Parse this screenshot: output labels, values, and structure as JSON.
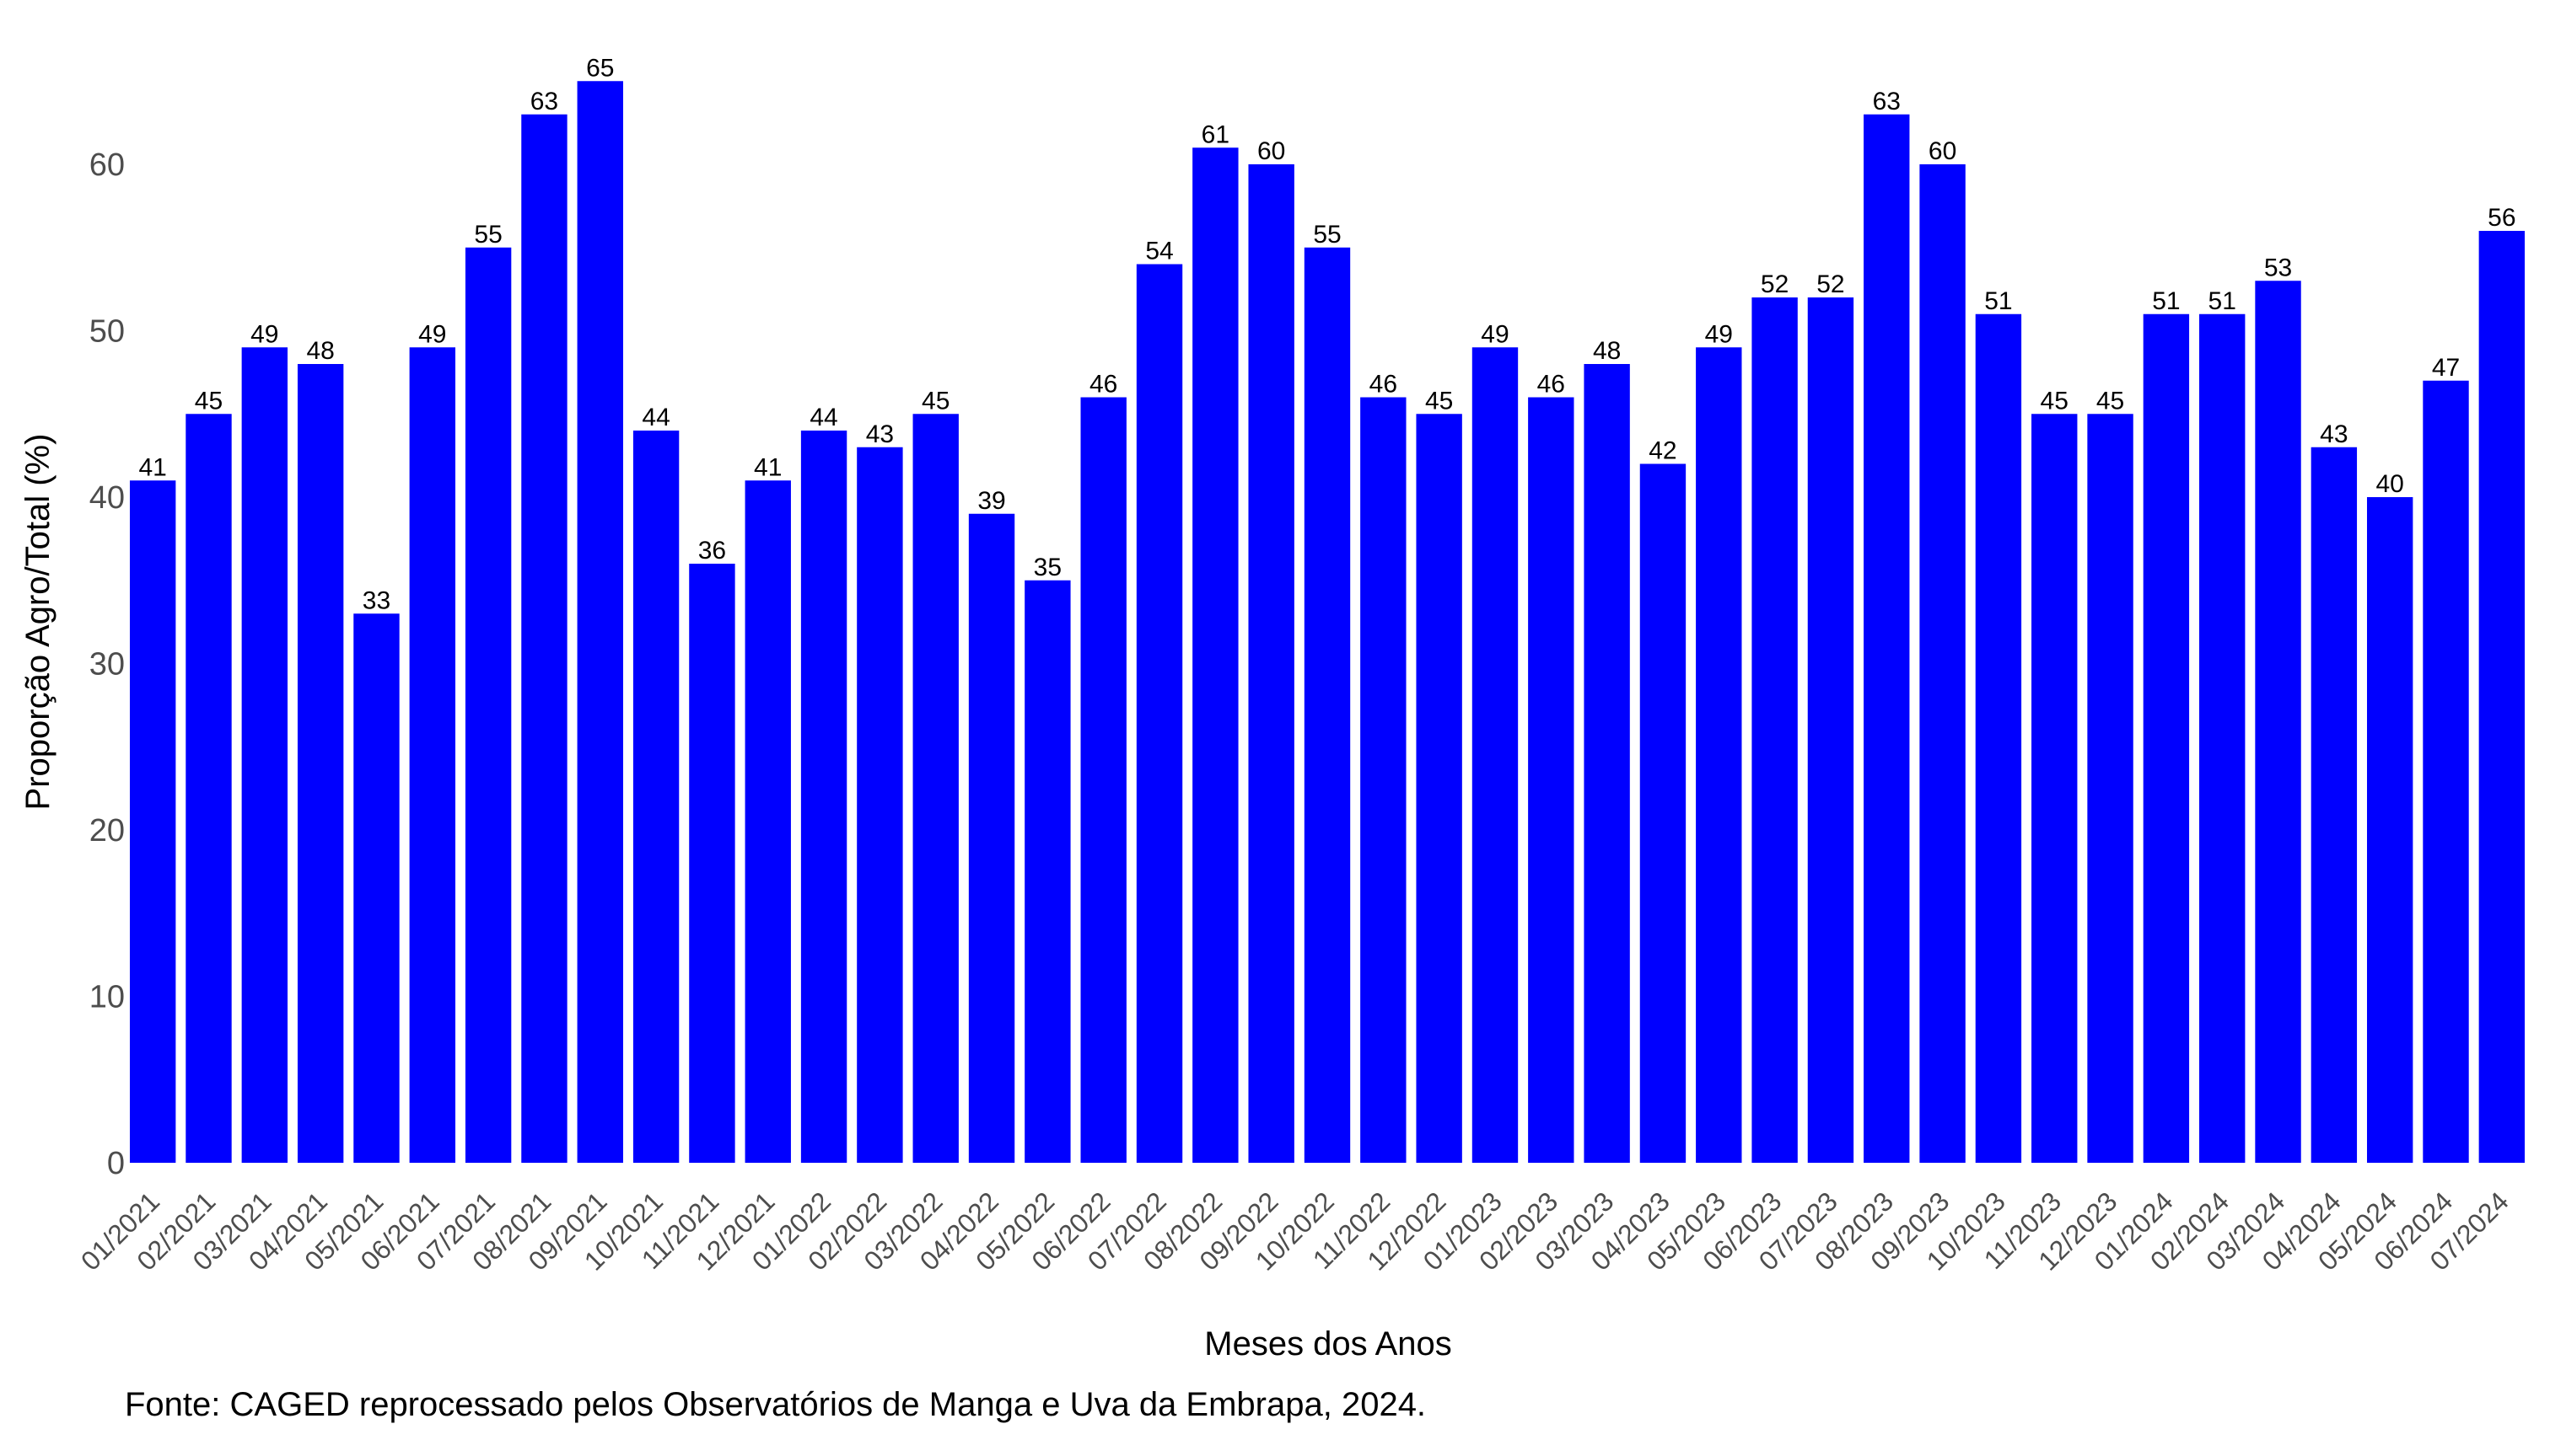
{
  "chart_data": {
    "type": "bar",
    "categories": [
      "01/2021",
      "02/2021",
      "03/2021",
      "04/2021",
      "05/2021",
      "06/2021",
      "07/2021",
      "08/2021",
      "09/2021",
      "10/2021",
      "11/2021",
      "12/2021",
      "01/2022",
      "02/2022",
      "03/2022",
      "04/2022",
      "05/2022",
      "06/2022",
      "07/2022",
      "08/2022",
      "09/2022",
      "10/2022",
      "11/2022",
      "12/2022",
      "01/2023",
      "02/2023",
      "03/2023",
      "04/2023",
      "05/2023",
      "06/2023",
      "07/2023",
      "08/2023",
      "09/2023",
      "10/2023",
      "11/2023",
      "12/2023",
      "01/2024",
      "02/2024",
      "03/2024",
      "04/2024",
      "05/2024",
      "06/2024",
      "07/2024"
    ],
    "values": [
      41,
      45,
      49,
      48,
      33,
      49,
      55,
      63,
      65,
      44,
      36,
      41,
      44,
      43,
      45,
      39,
      35,
      46,
      54,
      61,
      60,
      55,
      46,
      45,
      49,
      46,
      48,
      42,
      49,
      52,
      52,
      63,
      60,
      51,
      45,
      45,
      51,
      51,
      53,
      43,
      40,
      47,
      56
    ],
    "xlabel": "Meses dos Anos",
    "ylabel": "Proporção Agro/Total (%)",
    "ylim": [
      0,
      65
    ],
    "yticks": [
      0,
      10,
      20,
      30,
      40,
      50,
      60
    ],
    "grid": false,
    "bar_color": "#0000ff"
  },
  "caption": "Fonte: CAGED reprocessado pelos Observatórios de Manga e Uva da Embrapa, 2024."
}
